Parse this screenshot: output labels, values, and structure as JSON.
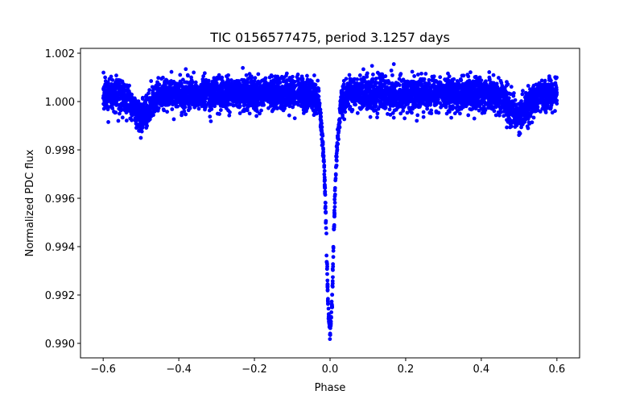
{
  "chart_data": {
    "type": "scatter",
    "title": "TIC 0156577475, period 3.1257 days",
    "xlabel": "Phase",
    "ylabel": "Normalized PDC flux",
    "xlim": [
      -0.66,
      0.66
    ],
    "ylim": [
      0.9894,
      1.0022
    ],
    "x_ticks": [
      -0.6,
      -0.4,
      -0.2,
      0.0,
      0.2,
      0.4,
      0.6
    ],
    "x_tick_labels": [
      "−0.6",
      "−0.4",
      "−0.2",
      "0.0",
      "0.2",
      "0.4",
      "0.6"
    ],
    "y_ticks": [
      0.99,
      0.992,
      0.994,
      0.996,
      0.998,
      1.0,
      1.002
    ],
    "y_tick_labels": [
      "0.990",
      "0.992",
      "0.994",
      "0.996",
      "0.998",
      "1.000",
      "1.002"
    ],
    "grid": false,
    "marker_color": "#0000ff",
    "series": [
      {
        "x": [
          -0.6,
          -0.55,
          -0.5,
          -0.45,
          -0.4,
          -0.3,
          -0.2,
          -0.1,
          -0.05,
          -0.03,
          -0.02,
          -0.015,
          -0.01,
          -0.005,
          0.0,
          0.005,
          0.01,
          0.015,
          0.02,
          0.03,
          0.05,
          0.1,
          0.2,
          0.3,
          0.4,
          0.45,
          0.5,
          0.55,
          0.6
        ],
        "values": [
          1.0003,
          1.0003,
          0.9993,
          1.0003,
          1.0003,
          1.0003,
          1.0003,
          1.0003,
          1.0003,
          1.0001,
          0.9985,
          0.997,
          0.9945,
          0.9915,
          0.9905,
          0.9915,
          0.9945,
          0.997,
          0.9985,
          1.0001,
          1.0003,
          1.0003,
          1.0003,
          1.0003,
          1.0003,
          1.0003,
          0.9993,
          1.0003,
          1.0003
        ]
      }
    ]
  }
}
